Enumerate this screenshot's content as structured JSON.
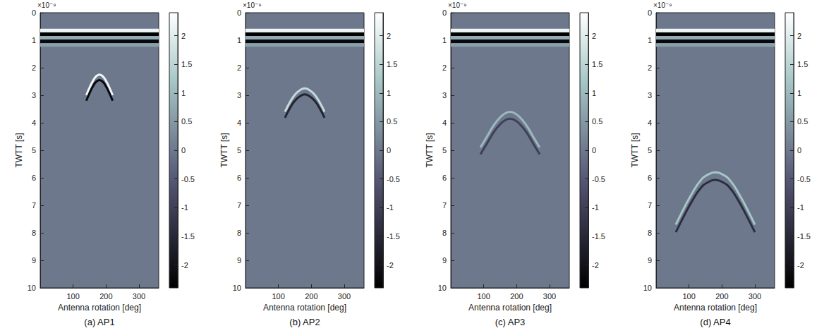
{
  "chart_data": [
    {
      "type": "radargram",
      "caption": "(a) AP1",
      "x_label": "Antenna rotation [deg]",
      "y_label": "TWTT [s]",
      "y_multiplier_label": "×10⁻⁹",
      "xlim": [
        0,
        360
      ],
      "xticks": [
        100,
        200,
        300
      ],
      "ylim": [
        0,
        10
      ],
      "yticks": [
        0,
        1,
        2,
        3,
        4,
        5,
        6,
        7,
        8,
        9,
        10
      ],
      "colorbar": {
        "range": [
          -2.4,
          2.4
        ],
        "ticks": [
          -2,
          -1.5,
          -1,
          -0.5,
          0,
          0.5,
          1,
          1.5,
          2
        ]
      },
      "bands": [
        {
          "twtt": 0.65,
          "amplitude": 2.2
        },
        {
          "twtt": 0.78,
          "amplitude": -2.4
        },
        {
          "twtt": 0.91,
          "amplitude": 0.8
        },
        {
          "twtt": 1.04,
          "amplitude": -2.2
        },
        {
          "twtt": 1.17,
          "amplitude": 0.6
        }
      ],
      "series": [
        {
          "x": [
            140,
            150,
            160,
            170,
            180,
            190,
            200,
            210,
            220
          ],
          "values": [
            3.0,
            2.72,
            2.48,
            2.31,
            2.25,
            2.31,
            2.48,
            2.72,
            3.0
          ],
          "amplitude": 2.2
        },
        {
          "x": [
            140,
            150,
            160,
            170,
            180,
            190,
            200,
            210,
            220
          ],
          "values": [
            3.2,
            2.92,
            2.68,
            2.51,
            2.45,
            2.51,
            2.68,
            2.92,
            3.2
          ],
          "amplitude": -2.2
        }
      ]
    },
    {
      "type": "radargram",
      "caption": "(b) AP2",
      "x_label": "Antenna rotation [deg]",
      "y_label": "TWTT [s]",
      "y_multiplier_label": "×10⁻⁹",
      "xlim": [
        0,
        360
      ],
      "xticks": [
        100,
        200,
        300
      ],
      "ylim": [
        0,
        10
      ],
      "yticks": [
        0,
        1,
        2,
        3,
        4,
        5,
        6,
        7,
        8,
        9,
        10
      ],
      "colorbar": {
        "range": [
          -2.4,
          2.4
        ],
        "ticks": [
          -2,
          -1.5,
          -1,
          -0.5,
          0,
          0.5,
          1,
          1.5,
          2
        ]
      },
      "bands": [
        {
          "twtt": 0.65,
          "amplitude": 2.2
        },
        {
          "twtt": 0.78,
          "amplitude": -2.4
        },
        {
          "twtt": 0.91,
          "amplitude": 0.8
        },
        {
          "twtt": 1.04,
          "amplitude": -2.2
        },
        {
          "twtt": 1.17,
          "amplitude": 0.6
        }
      ],
      "series": [
        {
          "x": [
            120,
            135,
            150,
            165,
            180,
            195,
            210,
            225,
            240
          ],
          "values": [
            3.6,
            3.25,
            2.98,
            2.82,
            2.75,
            2.82,
            2.98,
            3.25,
            3.6
          ],
          "amplitude": 1.6
        },
        {
          "x": [
            120,
            135,
            150,
            165,
            180,
            195,
            210,
            225,
            240
          ],
          "values": [
            3.82,
            3.47,
            3.2,
            3.04,
            2.97,
            3.04,
            3.2,
            3.47,
            3.82
          ],
          "amplitude": -1.6
        }
      ]
    },
    {
      "type": "radargram",
      "caption": "(c) AP3",
      "x_label": "Antenna rotation [deg]",
      "y_label": "TWTT [s]",
      "y_multiplier_label": "×10⁻⁹",
      "xlim": [
        0,
        360
      ],
      "xticks": [
        100,
        200,
        300
      ],
      "ylim": [
        0,
        10
      ],
      "yticks": [
        0,
        1,
        2,
        3,
        4,
        5,
        6,
        7,
        8,
        9,
        10
      ],
      "colorbar": {
        "range": [
          -2.4,
          2.4
        ],
        "ticks": [
          -2,
          -1.5,
          -1,
          -0.5,
          0,
          0.5,
          1,
          1.5,
          2
        ]
      },
      "bands": [
        {
          "twtt": 0.65,
          "amplitude": 2.2
        },
        {
          "twtt": 0.78,
          "amplitude": -2.4
        },
        {
          "twtt": 0.91,
          "amplitude": 0.8
        },
        {
          "twtt": 1.04,
          "amplitude": -2.2
        },
        {
          "twtt": 1.17,
          "amplitude": 0.6
        }
      ],
      "series": [
        {
          "x": [
            90,
            110,
            130,
            150,
            165,
            180,
            195,
            210,
            230,
            250,
            270
          ],
          "values": [
            4.9,
            4.5,
            4.1,
            3.8,
            3.66,
            3.6,
            3.66,
            3.8,
            4.1,
            4.5,
            4.9
          ],
          "amplitude": 1.0
        },
        {
          "x": [
            90,
            110,
            130,
            150,
            165,
            180,
            195,
            210,
            230,
            250,
            270
          ],
          "values": [
            5.15,
            4.75,
            4.35,
            4.05,
            3.91,
            3.85,
            3.91,
            4.05,
            4.35,
            4.75,
            5.15
          ],
          "amplitude": -1.0
        }
      ]
    },
    {
      "type": "radargram",
      "caption": "(d) AP4",
      "x_label": "Antenna rotation [deg]",
      "y_label": "TWTT [s]",
      "y_multiplier_label": "×10⁻⁹",
      "xlim": [
        0,
        360
      ],
      "xticks": [
        100,
        200,
        300
      ],
      "ylim": [
        0,
        10
      ],
      "yticks": [
        0,
        1,
        2,
        3,
        4,
        5,
        6,
        7,
        8,
        9,
        10
      ],
      "colorbar": {
        "range": [
          -2.4,
          2.4
        ],
        "ticks": [
          -2,
          -1.5,
          -1,
          -0.5,
          0,
          0.5,
          1,
          1.5,
          2
        ]
      },
      "bands": [
        {
          "twtt": 0.65,
          "amplitude": 2.2
        },
        {
          "twtt": 0.78,
          "amplitude": -2.4
        },
        {
          "twtt": 0.91,
          "amplitude": 0.8
        },
        {
          "twtt": 1.04,
          "amplitude": -2.2
        },
        {
          "twtt": 1.17,
          "amplitude": 0.6
        }
      ],
      "series": [
        {
          "x": [
            60,
            85,
            110,
            135,
            155,
            180,
            205,
            225,
            250,
            275,
            300
          ],
          "values": [
            7.7,
            7.1,
            6.55,
            6.1,
            5.9,
            5.8,
            5.9,
            6.1,
            6.55,
            7.1,
            7.7
          ],
          "amplitude": 1.2
        },
        {
          "x": [
            60,
            85,
            110,
            135,
            155,
            180,
            205,
            225,
            250,
            275,
            300
          ],
          "values": [
            7.98,
            7.38,
            6.83,
            6.38,
            6.18,
            6.08,
            6.18,
            6.38,
            6.83,
            7.38,
            7.98
          ],
          "amplitude": -1.4
        }
      ]
    }
  ]
}
